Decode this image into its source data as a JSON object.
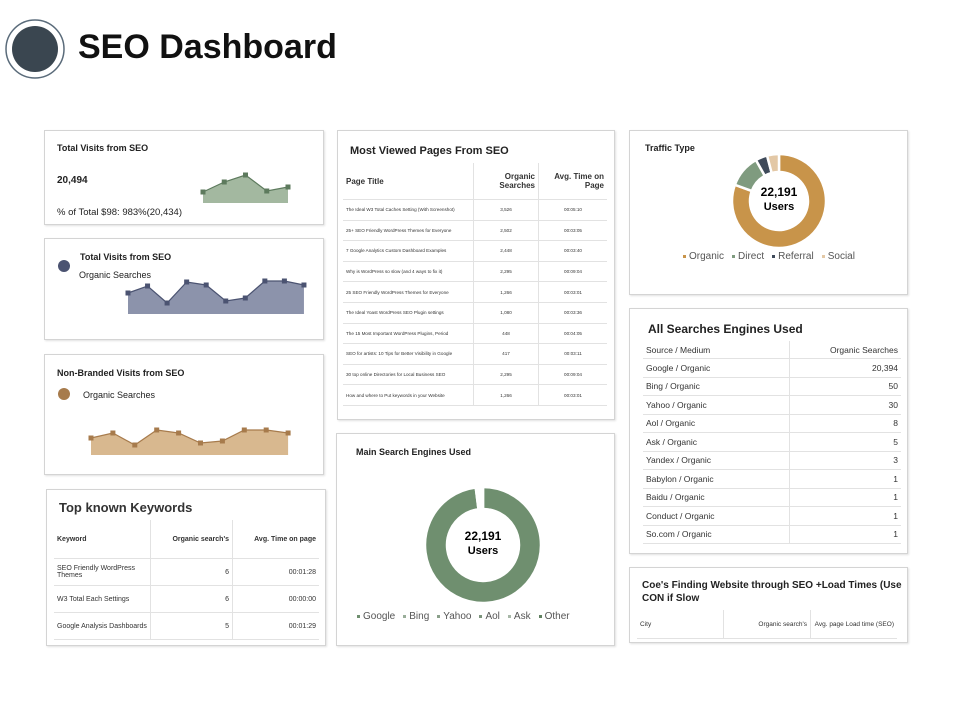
{
  "header": {
    "title": "SEO Dashboard"
  },
  "visits_card": {
    "title": "Total Visits from SEO",
    "total": "20,494",
    "share": "% of Total $98: 983%(20,434)",
    "chart": {
      "type": "area",
      "color": "#a3b8a0",
      "marker_color": "#5d7a5d",
      "values": [
        11,
        21,
        28,
        12,
        16
      ]
    }
  },
  "visits_chart": {
    "title": "Total Visits from SEO",
    "chart": {
      "type": "area",
      "series": [
        {
          "name": "Organic Searches",
          "color": "#8c93ab",
          "marker_color": "#4b5371",
          "values": [
            21,
            28,
            11,
            32,
            29,
            13,
            16,
            33,
            33,
            29
          ]
        }
      ]
    }
  },
  "non_branded": {
    "title": "Non-Branded Visits from SEO",
    "chart": {
      "type": "area",
      "series": [
        {
          "name": "Organic Searches",
          "color": "#d8b88f",
          "marker_color": "#a77b4c",
          "values": [
            17,
            22,
            10,
            25,
            22,
            12,
            14,
            25,
            25,
            22
          ]
        }
      ]
    }
  },
  "keywords": {
    "title": "Top known Keywords",
    "columns": [
      "Keyword",
      "Organic search's",
      "Avg. Time on page"
    ],
    "rows": [
      [
        "SEO Friendly WordPress Themes",
        "6",
        "00:01:28"
      ],
      [
        "W3 Total Each Settings",
        "6",
        "00:00:00"
      ],
      [
        "Google Analysis Dashboards",
        "5",
        "00:01:29"
      ]
    ]
  },
  "pages": {
    "title": "Most Viewed Pages From SEO",
    "columns": [
      "Page Title",
      "Organic Searches",
      "Avg. Time on Page"
    ],
    "rows": [
      [
        "The Ideal W3 Total Caches Setting (With Screenshot)",
        "3,526",
        "00:05:10"
      ],
      [
        "25+ SEO Friendly WordPress Themes for Everyone",
        "2,502",
        "00:03:05"
      ],
      [
        "7 Google Analytics Custom Dashboard Examples",
        "2,448",
        "00:03:40"
      ],
      [
        "Why is WordPress so slow (and 4 ways to fix it)",
        "2,295",
        "00:09:04"
      ],
      [
        "25 SEO Friendly WordPress Themes for Everyone",
        "1,266",
        "00:03:01"
      ],
      [
        "The Ideal Yoast WordPress SEO Plugin settings",
        "1,080",
        "00:03:36"
      ],
      [
        "The 15 Most Important WordPress Plugins, Period",
        "448",
        "00:04:05"
      ],
      [
        "SEO for artists: 10 Tips for Better Visibility in Google",
        "417",
        "00:03:11"
      ],
      [
        "30 top online Directories for Local Business SEO",
        "2,295",
        "00:09:04"
      ],
      [
        "How and where to Put keywords in your Website",
        "1,266",
        "00:03:01"
      ]
    ]
  },
  "engines": {
    "title": "Main Search Engines Used",
    "chart": {
      "type": "donut",
      "center": "22,191",
      "center_label": "Users",
      "categories": [
        "Google",
        "Bing",
        "Yahoo",
        "Aol",
        "Ask",
        "Other"
      ],
      "values": [
        98,
        0.5,
        0.5,
        0.3,
        0.2,
        0.5
      ],
      "colors": [
        "#6f8f6f",
        "#9aae9a",
        "#8aa08a",
        "#7c947c",
        "#a8b8a8",
        "#5f805f"
      ]
    }
  },
  "traffic": {
    "title": "Traffic Type",
    "chart": {
      "type": "donut",
      "center": "22,191",
      "center_label": "Users",
      "categories": [
        "Organic",
        "Direct",
        "Referral",
        "Social"
      ],
      "values": [
        79,
        11,
        4,
        4
      ],
      "colors": [
        "#c8944a",
        "#7f9b7f",
        "#3f4a5a",
        "#e3c8a6"
      ]
    }
  },
  "searches": {
    "title": "All Searches Engines Used",
    "columns": [
      "Source / Medium",
      "Organic Searches"
    ],
    "rows": [
      [
        "Google / Organic",
        "20,394"
      ],
      [
        "Bing / Organic",
        "50"
      ],
      [
        "Yahoo / Organic",
        "30"
      ],
      [
        "Aol / Organic",
        "8"
      ],
      [
        "Ask / Organic",
        "5"
      ],
      [
        "Yandex / Organic",
        "3"
      ],
      [
        "Babylon / Organic",
        "1"
      ],
      [
        "Baidu / Organic",
        "1"
      ],
      [
        "Conduct / Organic",
        "1"
      ],
      [
        "So.com / Organic",
        "1"
      ]
    ]
  },
  "load_times": {
    "title": "Coe's Finding Website through SEO +Load Times (Use CON if Slow",
    "columns": [
      "City",
      "Organic search's",
      "Avg. page Load time (SEO)"
    ]
  }
}
